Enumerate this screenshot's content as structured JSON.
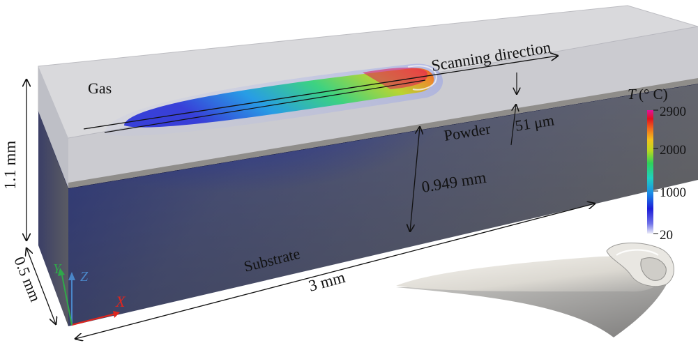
{
  "labels": {
    "gas": "Gas",
    "scanning_direction": "Scanning direction",
    "powder": "Powder",
    "powder_thickness": "51 μm",
    "substrate_thickness": "0.949 mm",
    "height": "1.1 mm",
    "width": "0.5 mm",
    "length": "3 mm",
    "substrate": "Substrate"
  },
  "axes": {
    "x": "X",
    "y": "Y",
    "z": "Z"
  },
  "colorbar": {
    "title_symbol": "T",
    "title_unit": "(° C)",
    "ticks": [
      "2900",
      "2000",
      "1000",
      "20"
    ]
  },
  "colors": {
    "axis_x": "#e0261e",
    "axis_y": "#2fa84a",
    "axis_z": "#4a86c8",
    "substrate_front": "#5e6068",
    "gas_layer": "#dcdcdf"
  }
}
